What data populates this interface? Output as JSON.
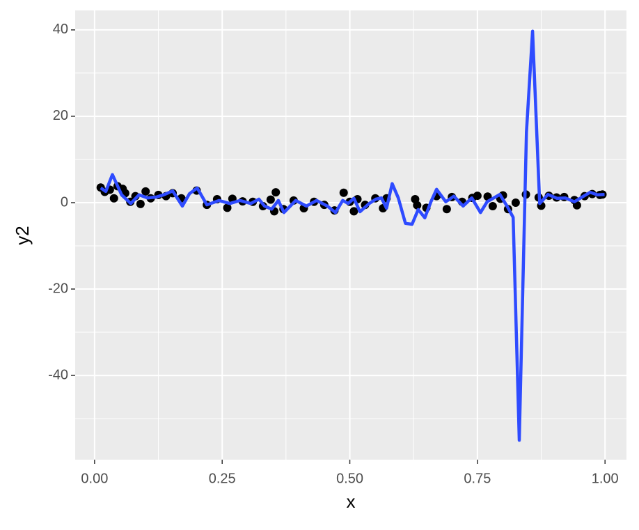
{
  "chart_data": {
    "type": "scatter",
    "x_label": "x",
    "y_label": "y2",
    "xlim": [
      -0.038,
      1.042
    ],
    "ylim": [
      -59.5,
      44.5
    ],
    "xticks": [
      {
        "value": 0,
        "label": "0.00"
      },
      {
        "value": 0.25,
        "label": "0.25"
      },
      {
        "value": 0.5,
        "label": "0.50"
      },
      {
        "value": 0.75,
        "label": "0.75"
      },
      {
        "value": 1,
        "label": "1.00"
      }
    ],
    "yticks": [
      -40,
      -20,
      0,
      20,
      40
    ],
    "x_minor_grid": [
      0.125,
      0.375,
      0.625,
      0.875
    ],
    "y_minor_grid": [
      -50,
      -30,
      -10,
      10,
      30
    ],
    "grid": true,
    "points": {
      "color": "#000000",
      "x": [
        0.012,
        0.02,
        0.03,
        0.038,
        0.045,
        0.055,
        0.06,
        0.07,
        0.08,
        0.09,
        0.1,
        0.11,
        0.125,
        0.14,
        0.153,
        0.17,
        0.2,
        0.22,
        0.24,
        0.26,
        0.27,
        0.29,
        0.31,
        0.33,
        0.345,
        0.352,
        0.355,
        0.37,
        0.39,
        0.41,
        0.43,
        0.45,
        0.47,
        0.488,
        0.5,
        0.508,
        0.515,
        0.53,
        0.55,
        0.565,
        0.572,
        0.628,
        0.632,
        0.65,
        0.67,
        0.69,
        0.7,
        0.72,
        0.74,
        0.75,
        0.77,
        0.78,
        0.795,
        0.8,
        0.81,
        0.825,
        0.845,
        0.87,
        0.875,
        0.89,
        0.905,
        0.92,
        0.94,
        0.945,
        0.96,
        0.975,
        0.99,
        0.995
      ],
      "y": [
        3.5,
        2.5,
        3.0,
        1.0,
        3.8,
        3.2,
        2.2,
        0.2,
        1.5,
        -0.3,
        2.6,
        1.0,
        1.8,
        1.5,
        2.2,
        1.0,
        2.8,
        -0.5,
        0.8,
        -1.2,
        0.9,
        0.3,
        0.2,
        -0.8,
        0.7,
        -2.0,
        2.4,
        -1.5,
        0.5,
        -1.3,
        0.2,
        -0.5,
        -1.8,
        2.3,
        0.2,
        -2.0,
        0.8,
        -0.5,
        1.0,
        -1.3,
        1.0,
        0.8,
        -0.6,
        -1.2,
        1.5,
        -1.5,
        1.3,
        0.2,
        1.1,
        1.6,
        1.4,
        -0.8,
        0.9,
        1.7,
        -1.5,
        0.0,
        1.9,
        1.2,
        -0.7,
        1.6,
        1.2,
        1.3,
        0.6,
        -0.6,
        1.5,
        2.0,
        1.8,
        1.9
      ]
    },
    "line": {
      "color": "#2E4BFF",
      "x": [
        0.012,
        0.022,
        0.035,
        0.053,
        0.071,
        0.087,
        0.104,
        0.121,
        0.135,
        0.153,
        0.172,
        0.186,
        0.201,
        0.22,
        0.244,
        0.265,
        0.285,
        0.306,
        0.322,
        0.333,
        0.347,
        0.36,
        0.371,
        0.394,
        0.415,
        0.435,
        0.456,
        0.472,
        0.486,
        0.497,
        0.508,
        0.52,
        0.538,
        0.551,
        0.562,
        0.572,
        0.583,
        0.595,
        0.609,
        0.622,
        0.634,
        0.647,
        0.659,
        0.67,
        0.688,
        0.704,
        0.722,
        0.739,
        0.756,
        0.769,
        0.794,
        0.808,
        0.82,
        0.832,
        0.846,
        0.858,
        0.872,
        0.888,
        0.906,
        0.922,
        0.94,
        0.958,
        0.971,
        0.985,
        0.999
      ],
      "y": [
        3.4,
        2.6,
        6.5,
        1.8,
        -0.2,
        1.8,
        1.1,
        1.3,
        1.8,
        2.7,
        -0.8,
        2.1,
        3.4,
        -0.5,
        0.5,
        -0.2,
        0.5,
        -0.2,
        0.8,
        -0.8,
        -1.5,
        0.5,
        -2.3,
        0.5,
        -0.8,
        0.5,
        -0.8,
        -2.3,
        0.5,
        -0.2,
        1.0,
        -2.1,
        -0.2,
        0.8,
        1.1,
        -1.3,
        4.4,
        1.1,
        -4.8,
        -5.0,
        -1.6,
        -3.5,
        0.2,
        3.1,
        0.2,
        1.5,
        -0.8,
        1.1,
        -2.3,
        0.2,
        1.9,
        -0.8,
        -3.4,
        -55,
        16.3,
        39.7,
        -0.2,
        1.9,
        1.0,
        1.1,
        0.2,
        1.5,
        2.4,
        1.8,
        1.9
      ]
    }
  }
}
